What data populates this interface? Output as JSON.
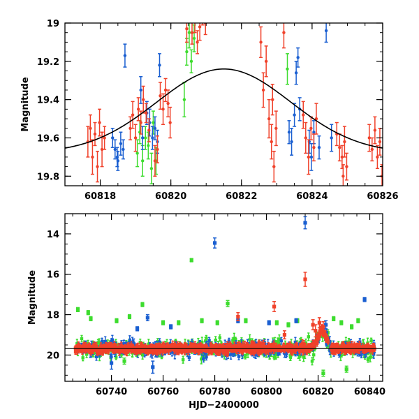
{
  "colors": {
    "series_red": "#f0412a",
    "series_blue": "#1a5fd1",
    "series_green": "#3ddc2e",
    "model_curve": "#000000",
    "frame": "#000000",
    "background": "#ffffff"
  },
  "chart_data": [
    {
      "type": "scatter",
      "panel": "top",
      "xlabel": "",
      "ylabel": "Magnitude",
      "xlim": [
        60817.0,
        60826.0
      ],
      "ylim": [
        19.85,
        19.0
      ],
      "y_inverted": true,
      "grid": false,
      "legend": "none",
      "xticks": [
        60818,
        60820,
        60822,
        60824,
        60826
      ],
      "yticks": [
        19.0,
        19.2,
        19.4,
        19.6,
        19.8
      ],
      "ytick_labels": [
        "19",
        "19.2",
        "19.4",
        "19.6",
        "19.8"
      ],
      "model_curve": {
        "peak_time": 60821.5,
        "peak_mag": 19.24,
        "baseline_mag": 19.68,
        "sigma_days": 1.9
      },
      "series": [
        {
          "color_key": "series_red",
          "points": [
            [
              60817.65,
              19.62,
              0.08
            ],
            [
              60817.72,
              19.55,
              0.07
            ],
            [
              60817.78,
              19.7,
              0.09
            ],
            [
              60817.85,
              19.58,
              0.06
            ],
            [
              60817.92,
              19.75,
              0.08
            ],
            [
              60817.98,
              19.52,
              0.07
            ],
            [
              60818.05,
              19.66,
              0.09
            ],
            [
              60818.12,
              19.6,
              0.06
            ],
            [
              60818.85,
              19.55,
              0.06
            ],
            [
              60818.92,
              19.48,
              0.07
            ],
            [
              60819.0,
              19.6,
              0.07
            ],
            [
              60819.08,
              19.45,
              0.06
            ],
            [
              60819.15,
              19.52,
              0.06
            ],
            [
              60819.22,
              19.4,
              0.07
            ],
            [
              60819.3,
              19.47,
              0.05
            ],
            [
              60819.38,
              19.56,
              0.06
            ],
            [
              60819.7,
              19.38,
              0.07
            ],
            [
              60819.78,
              19.45,
              0.08
            ],
            [
              60819.85,
              19.35,
              0.06
            ],
            [
              60819.92,
              19.42,
              0.07
            ],
            [
              60819.98,
              19.52,
              0.08
            ],
            [
              60819.55,
              19.72,
              0.08
            ],
            [
              60819.62,
              19.66,
              0.07
            ],
            [
              60820.6,
              19.05,
              0.06
            ],
            [
              60820.68,
              18.98,
              0.07
            ],
            [
              60820.75,
              19.1,
              0.06
            ],
            [
              60820.82,
              19.02,
              0.07
            ],
            [
              60820.9,
              18.95,
              0.06
            ],
            [
              60820.98,
              19.0,
              0.06
            ],
            [
              60820.45,
              19.03,
              0.07
            ],
            [
              60822.55,
              19.1,
              0.08
            ],
            [
              60822.62,
              19.35,
              0.09
            ],
            [
              60822.7,
              19.2,
              0.08
            ],
            [
              60822.78,
              19.5,
              0.1
            ],
            [
              60822.85,
              19.62,
              0.09
            ],
            [
              60822.92,
              19.75,
              0.08
            ],
            [
              60822.98,
              19.55,
              0.09
            ],
            [
              60822.88,
              19.4,
              0.08
            ],
            [
              60823.2,
              19.05,
              0.08
            ],
            [
              60823.75,
              19.48,
              0.07
            ],
            [
              60823.82,
              19.6,
              0.08
            ],
            [
              60823.9,
              19.7,
              0.09
            ],
            [
              60823.97,
              19.55,
              0.06
            ],
            [
              60824.05,
              19.65,
              0.07
            ],
            [
              60824.12,
              19.5,
              0.08
            ],
            [
              60824.7,
              19.58,
              0.06
            ],
            [
              60824.78,
              19.65,
              0.07
            ],
            [
              60824.85,
              19.7,
              0.06
            ],
            [
              60824.92,
              19.62,
              0.08
            ],
            [
              60824.98,
              19.75,
              0.07
            ],
            [
              60824.88,
              19.8,
              0.06
            ],
            [
              60825.62,
              19.6,
              0.07
            ],
            [
              60825.7,
              19.66,
              0.06
            ],
            [
              60825.78,
              19.56,
              0.07
            ],
            [
              60825.85,
              19.7,
              0.06
            ],
            [
              60825.92,
              19.62,
              0.07
            ],
            [
              60825.98,
              19.8,
              0.06
            ]
          ]
        },
        {
          "color_key": "series_blue",
          "points": [
            [
              60818.35,
              19.6,
              0.05
            ],
            [
              60818.42,
              19.66,
              0.05
            ],
            [
              60818.5,
              19.72,
              0.05
            ],
            [
              60818.58,
              19.63,
              0.06
            ],
            [
              60818.48,
              19.7,
              0.05
            ],
            [
              60818.65,
              19.66,
              0.05
            ],
            [
              60818.7,
              19.17,
              0.06
            ],
            [
              60819.15,
              19.35,
              0.07
            ],
            [
              60819.2,
              19.6,
              0.06
            ],
            [
              60819.32,
              19.47,
              0.06
            ],
            [
              60819.4,
              19.52,
              0.07
            ],
            [
              60819.55,
              19.55,
              0.06
            ],
            [
              60819.62,
              19.62,
              0.06
            ],
            [
              60819.68,
              19.22,
              0.06
            ],
            [
              60819.48,
              19.6,
              0.06
            ],
            [
              60823.35,
              19.57,
              0.06
            ],
            [
              60823.42,
              19.62,
              0.07
            ],
            [
              60823.5,
              19.48,
              0.06
            ],
            [
              60823.55,
              19.26,
              0.06
            ],
            [
              60823.6,
              19.18,
              0.05
            ],
            [
              60823.65,
              19.45,
              0.06
            ],
            [
              60823.92,
              19.62,
              0.06
            ],
            [
              60823.98,
              19.7,
              0.07
            ],
            [
              60824.05,
              19.57,
              0.06
            ],
            [
              60824.2,
              19.65,
              0.06
            ],
            [
              60824.4,
              19.04,
              0.06
            ],
            [
              60824.55,
              19.6,
              0.07
            ]
          ]
        },
        {
          "color_key": "series_green",
          "points": [
            [
              60819.05,
              19.68,
              0.07
            ],
            [
              60819.12,
              19.57,
              0.06
            ],
            [
              60819.2,
              19.72,
              0.08
            ],
            [
              60819.28,
              19.6,
              0.06
            ],
            [
              60819.36,
              19.64,
              0.07
            ],
            [
              60819.45,
              19.76,
              0.08
            ],
            [
              60819.5,
              19.52,
              0.06
            ],
            [
              60819.58,
              19.72,
              0.07
            ],
            [
              60820.45,
              19.15,
              0.07
            ],
            [
              60820.52,
              19.05,
              0.08
            ],
            [
              60820.58,
              19.2,
              0.06
            ],
            [
              60820.66,
              19.08,
              0.07
            ],
            [
              60820.38,
              19.4,
              0.09
            ],
            [
              60823.3,
              19.24,
              0.08
            ]
          ]
        }
      ]
    },
    {
      "type": "scatter",
      "panel": "bottom",
      "xlabel": "HJD−2400000",
      "ylabel": "Magnitude",
      "xlim": [
        60722.0,
        60845.0
      ],
      "ylim": [
        21.3,
        13.0
      ],
      "y_inverted": true,
      "grid": false,
      "legend": "none",
      "xticks": [
        60740,
        60760,
        60780,
        60800,
        60820,
        60840
      ],
      "yticks": [
        14,
        16,
        18,
        20
      ],
      "baseline_mag": 19.68,
      "cloud": {
        "x_range": [
          60726,
          60842
        ],
        "base_mag": 19.68,
        "red": {
          "count": 900,
          "spread": 0.16,
          "err": 0.13
        },
        "blue": {
          "count": 260,
          "spread": 0.3,
          "err": 0.18
        },
        "green": {
          "count": 320,
          "spread": 0.4,
          "err": 0.18
        }
      },
      "series": [
        {
          "color_key": "series_red",
          "points": [
            [
              60815.0,
              16.25,
              0.35
            ],
            [
              60803.0,
              17.6,
              0.25
            ],
            [
              60789.0,
              18.1,
              0.2
            ],
            [
              60818.0,
              18.5,
              0.25
            ],
            [
              60820.5,
              18.4,
              0.25
            ],
            [
              60822.0,
              18.6,
              0.25
            ],
            [
              60819.0,
              18.8,
              0.3
            ],
            [
              60807.0,
              19.0,
              0.2
            ]
          ]
        },
        {
          "color_key": "series_blue",
          "points": [
            [
              60815.0,
              13.45,
              0.3
            ],
            [
              60780.0,
              14.45,
              0.25
            ],
            [
              60838.0,
              17.25,
              0.1
            ],
            [
              60754.0,
              18.15,
              0.15
            ],
            [
              60789.0,
              18.3,
              0.1
            ],
            [
              60811.5,
              18.3,
              0.1
            ],
            [
              60801.0,
              18.4,
              0.1
            ],
            [
              60763.0,
              18.6,
              0.1
            ],
            [
              60750.0,
              18.7,
              0.1
            ],
            [
              60823.0,
              18.5,
              0.2
            ],
            [
              60740.0,
              20.4,
              0.3
            ],
            [
              60756.0,
              20.6,
              0.3
            ]
          ]
        },
        {
          "color_key": "series_green",
          "points": [
            [
              60771.0,
              15.3,
              0.08
            ],
            [
              60727.0,
              17.75,
              0.1
            ],
            [
              60731.0,
              17.9,
              0.1
            ],
            [
              60752.0,
              17.5,
              0.1
            ],
            [
              60785.0,
              17.45,
              0.15
            ],
            [
              60747.0,
              18.1,
              0.1
            ],
            [
              60732.0,
              18.2,
              0.1
            ],
            [
              60742.0,
              18.3,
              0.1
            ],
            [
              60760.0,
              18.4,
              0.1
            ],
            [
              60766.0,
              18.4,
              0.1
            ],
            [
              60775.0,
              18.3,
              0.1
            ],
            [
              60781.0,
              18.4,
              0.1
            ],
            [
              60792.0,
              18.3,
              0.1
            ],
            [
              60804.0,
              18.4,
              0.1
            ],
            [
              60808.5,
              18.5,
              0.1
            ],
            [
              60812.0,
              18.3,
              0.1
            ],
            [
              60826.0,
              18.2,
              0.1
            ],
            [
              60829.0,
              18.4,
              0.1
            ],
            [
              60833.0,
              18.6,
              0.1
            ],
            [
              60835.5,
              18.3,
              0.1
            ],
            [
              60831.0,
              20.7,
              0.15
            ],
            [
              60822.0,
              20.9,
              0.15
            ],
            [
              60745.0,
              20.3,
              0.15
            ]
          ]
        }
      ]
    }
  ]
}
